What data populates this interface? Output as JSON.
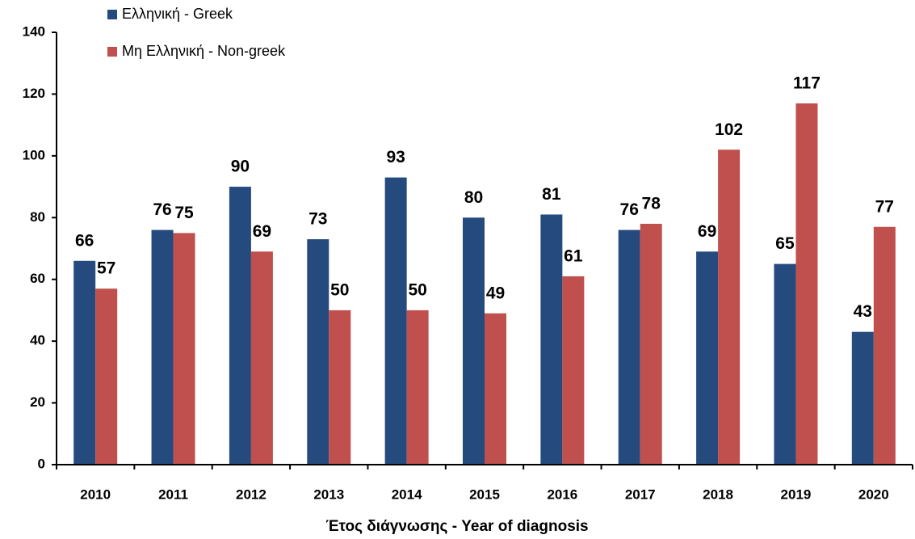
{
  "chart_data": {
    "type": "bar",
    "x_label": "Έτος διάγνωσης - Year of diagnosis",
    "categories": [
      "2010",
      "2011",
      "2012",
      "2013",
      "2014",
      "2015",
      "2016",
      "2017",
      "2018",
      "2019",
      "2020"
    ],
    "series": [
      {
        "name": "Ελληνική - Greek",
        "color": "#254a7d",
        "values": [
          66,
          76,
          90,
          73,
          93,
          80,
          81,
          76,
          69,
          65,
          43
        ]
      },
      {
        "name": "Μη Ελληνική - Non-greek",
        "color": "#c0504d",
        "values": [
          57,
          75,
          69,
          50,
          50,
          49,
          61,
          78,
          102,
          117,
          77
        ]
      }
    ],
    "ylim": [
      0,
      140
    ],
    "yticks": [
      0,
      20,
      40,
      60,
      80,
      100,
      120,
      140
    ],
    "grid": false
  }
}
